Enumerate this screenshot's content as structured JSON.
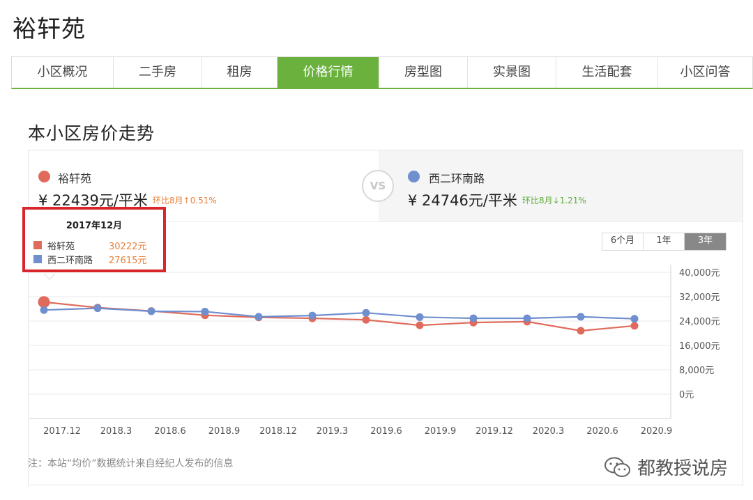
{
  "page_title": "裕轩苑",
  "tabs": [
    {
      "label": "小区概况",
      "active": false
    },
    {
      "label": "二手房",
      "active": false
    },
    {
      "label": "租房",
      "active": false
    },
    {
      "label": "价格行情",
      "active": true
    },
    {
      "label": "房型图",
      "active": false
    },
    {
      "label": "实景图",
      "active": false
    },
    {
      "label": "生活配套",
      "active": false
    },
    {
      "label": "小区问答",
      "active": false
    }
  ],
  "section_title": "本小区房价走势",
  "compare": {
    "left": {
      "name": "裕轩苑",
      "price": "¥ 22439元/平米",
      "change": "环比8月↑0.51%",
      "color": "#e06b5c",
      "change_color": "#e8823c"
    },
    "vs": "VS",
    "right": {
      "name": "西二环南路",
      "price": "¥ 24746元/平米",
      "change": "环比8月↓1.21%",
      "color": "#6f8fcf",
      "change_color": "#5fae3b"
    }
  },
  "range_buttons": [
    {
      "label": "6个月",
      "active": false
    },
    {
      "label": "1年",
      "active": false
    },
    {
      "label": "3年",
      "active": true
    }
  ],
  "tooltip": {
    "title": "2017年12月",
    "rows": [
      {
        "name": "裕轩苑",
        "value": "30222元"
      },
      {
        "name": "西二环南路",
        "value": "27615元"
      }
    ]
  },
  "chart_data": {
    "type": "line",
    "x_ticks": [
      "2017.12",
      "2018.3",
      "2018.6",
      "2018.9",
      "2018.12",
      "2019.3",
      "2019.6",
      "2019.9",
      "2019.12",
      "2020.3",
      "2020.6",
      "2020.9"
    ],
    "y_ticks": [
      "40,000元",
      "32,000元",
      "24,000元",
      "16,000元",
      "8,000元",
      "0元"
    ],
    "ylim": [
      0,
      40000
    ],
    "y_tick_values": [
      40000,
      32000,
      24000,
      16000,
      8000,
      0
    ],
    "grid": true,
    "series": [
      {
        "name": "裕轩苑",
        "color": "#e06b5c",
        "values": [
          30222,
          28400,
          27300,
          25900,
          25200,
          24900,
          24400,
          22600,
          23500,
          23800,
          20800,
          22439
        ]
      },
      {
        "name": "西二环南路",
        "color": "#6f8fcf",
        "values": [
          27615,
          28200,
          27200,
          27100,
          25400,
          25800,
          26700,
          25300,
          24900,
          24900,
          25400,
          24746
        ]
      }
    ],
    "highlight_index": 0
  },
  "note": "注：本站“均价”数据统计来自经纪人发布的信息",
  "watermark": "都教授说房"
}
